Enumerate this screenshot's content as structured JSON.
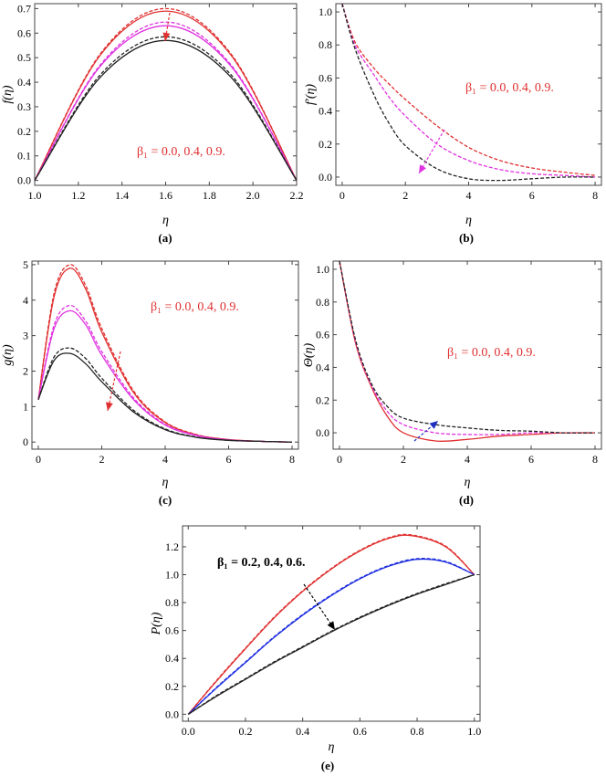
{
  "chart_data": [
    {
      "type": "line",
      "panel": "(a)",
      "xlabel": "η",
      "ylabel": "f(η)",
      "xlim": [
        1.0,
        2.2
      ],
      "ylim": [
        -0.02,
        0.72
      ],
      "xticks": [
        1.0,
        1.2,
        1.4,
        1.6,
        1.8,
        2.0,
        2.2
      ],
      "yticks": [
        0.0,
        0.1,
        0.2,
        0.3,
        0.4,
        0.5,
        0.6,
        0.7
      ],
      "xtick_labels": [
        "1.0",
        "1.2",
        "1.4",
        "1.6",
        "1.8",
        "2.0",
        "2.2"
      ],
      "ytick_labels": [
        "0.0",
        "0.1",
        "0.2",
        "0.3",
        "0.4",
        "0.5",
        "0.6",
        "0.7"
      ],
      "annotation": "β₁ = 0.0, 0.4, 0.9.",
      "series": [
        {
          "color": "#e03030",
          "dash": false,
          "x": [
            1.0,
            1.3,
            1.6,
            1.9,
            2.2
          ],
          "y": [
            0.0,
            0.51,
            0.69,
            0.51,
            0.0
          ]
        },
        {
          "color": "#e03030",
          "dash": true,
          "x": [
            1.0,
            1.3,
            1.6,
            1.9,
            2.2
          ],
          "y": [
            0.0,
            0.515,
            0.7,
            0.515,
            0.0
          ]
        },
        {
          "color": "#e030e0",
          "dash": false,
          "x": [
            1.0,
            1.3,
            1.6,
            1.9,
            2.2
          ],
          "y": [
            0.0,
            0.465,
            0.63,
            0.465,
            0.0
          ]
        },
        {
          "color": "#e030e0",
          "dash": true,
          "x": [
            1.0,
            1.3,
            1.6,
            1.9,
            2.2
          ],
          "y": [
            0.0,
            0.47,
            0.645,
            0.47,
            0.0
          ]
        },
        {
          "color": "#222222",
          "dash": false,
          "x": [
            1.0,
            1.3,
            1.6,
            1.9,
            2.2
          ],
          "y": [
            0.0,
            0.42,
            0.57,
            0.42,
            0.0
          ]
        },
        {
          "color": "#222222",
          "dash": true,
          "x": [
            1.0,
            1.3,
            1.6,
            1.9,
            2.2
          ],
          "y": [
            0.0,
            0.43,
            0.585,
            0.43,
            0.0
          ]
        }
      ]
    },
    {
      "type": "line",
      "panel": "(b)",
      "xlabel": "η",
      "ylabel": "f′(η)",
      "xlim": [
        -0.2,
        8.2
      ],
      "ylim": [
        -0.05,
        1.05
      ],
      "xticks": [
        0,
        2,
        4,
        6,
        8
      ],
      "yticks": [
        0.0,
        0.2,
        0.4,
        0.6,
        0.8,
        1.0
      ],
      "xtick_labels": [
        "0",
        "2",
        "4",
        "6",
        "8"
      ],
      "ytick_labels": [
        "0.0",
        "0.2",
        "0.4",
        "0.6",
        "0.8",
        "1.0"
      ],
      "annotation": "β₁ = 0.0, 0.4, 0.9.",
      "series": [
        {
          "color": "#e03030",
          "dash": true,
          "x": [
            0,
            0.4,
            1,
            1.5,
            2,
            3,
            4,
            5,
            6,
            7,
            8
          ],
          "y": [
            1.05,
            0.82,
            0.66,
            0.56,
            0.47,
            0.31,
            0.18,
            0.1,
            0.055,
            0.03,
            0.01
          ]
        },
        {
          "color": "#e030e0",
          "dash": true,
          "x": [
            0,
            0.4,
            1,
            1.5,
            2,
            3,
            4,
            5,
            6,
            7,
            8
          ],
          "y": [
            1.05,
            0.8,
            0.62,
            0.48,
            0.37,
            0.2,
            0.1,
            0.045,
            0.02,
            0.01,
            0.0
          ]
        },
        {
          "color": "#222222",
          "dash": true,
          "x": [
            0,
            0.4,
            1,
            1.5,
            2,
            3,
            4,
            5,
            6,
            7,
            8
          ],
          "y": [
            1.05,
            0.78,
            0.5,
            0.32,
            0.19,
            0.05,
            -0.01,
            -0.02,
            -0.01,
            0.0,
            0.0
          ]
        }
      ]
    },
    {
      "type": "line",
      "panel": "(c)",
      "xlabel": "η",
      "ylabel": "g(η)",
      "xlim": [
        -0.2,
        8.2
      ],
      "ylim": [
        -0.2,
        5.1
      ],
      "xticks": [
        0,
        2,
        4,
        6,
        8
      ],
      "yticks": [
        0,
        1,
        2,
        3,
        4,
        5
      ],
      "xtick_labels": [
        "0",
        "2",
        "4",
        "6",
        "8"
      ],
      "ytick_labels": [
        "0",
        "1",
        "2",
        "3",
        "4",
        "5"
      ],
      "annotation": "β₁ = 0.0, 0.4, 0.9.",
      "series": [
        {
          "color": "#e03030",
          "dash": false,
          "x": [
            0,
            0.5,
            1,
            1.5,
            2,
            3,
            4,
            5,
            6,
            7,
            8
          ],
          "y": [
            1.2,
            4.1,
            4.9,
            4.3,
            3.1,
            1.4,
            0.55,
            0.2,
            0.07,
            0.02,
            0.0
          ]
        },
        {
          "color": "#e03030",
          "dash": true,
          "x": [
            0,
            0.5,
            1,
            1.5,
            2,
            3,
            4,
            5,
            6,
            7,
            8
          ],
          "y": [
            1.2,
            4.2,
            5.0,
            4.4,
            3.2,
            1.45,
            0.57,
            0.21,
            0.07,
            0.02,
            0.0
          ]
        },
        {
          "color": "#e030e0",
          "dash": false,
          "x": [
            0,
            0.5,
            1,
            1.5,
            2,
            3,
            4,
            5,
            6,
            7,
            8
          ],
          "y": [
            1.2,
            3.2,
            3.7,
            3.3,
            2.45,
            1.2,
            0.48,
            0.18,
            0.06,
            0.02,
            0.0
          ]
        },
        {
          "color": "#e030e0",
          "dash": true,
          "x": [
            0,
            0.5,
            1,
            1.5,
            2,
            3,
            4,
            5,
            6,
            7,
            8
          ],
          "y": [
            1.2,
            3.3,
            3.85,
            3.4,
            2.55,
            1.25,
            0.5,
            0.19,
            0.06,
            0.02,
            0.0
          ]
        },
        {
          "color": "#222222",
          "dash": false,
          "x": [
            0,
            0.5,
            1,
            1.5,
            2,
            3,
            4,
            5,
            6,
            7,
            8
          ],
          "y": [
            1.2,
            2.3,
            2.5,
            2.2,
            1.7,
            0.85,
            0.35,
            0.13,
            0.05,
            0.02,
            0.0
          ]
        },
        {
          "color": "#222222",
          "dash": true,
          "x": [
            0,
            0.5,
            1,
            1.5,
            2,
            3,
            4,
            5,
            6,
            7,
            8
          ],
          "y": [
            1.2,
            2.4,
            2.65,
            2.35,
            1.8,
            0.9,
            0.37,
            0.14,
            0.05,
            0.02,
            0.0
          ]
        }
      ]
    },
    {
      "type": "line",
      "panel": "(d)",
      "xlabel": "η",
      "ylabel": "Θ(η)",
      "xlim": [
        -0.2,
        8.2
      ],
      "ylim": [
        -0.1,
        1.05
      ],
      "xticks": [
        0,
        2,
        4,
        6,
        8
      ],
      "yticks": [
        0.0,
        0.2,
        0.4,
        0.6,
        0.8,
        1.0
      ],
      "xtick_labels": [
        "0",
        "2",
        "4",
        "6",
        "8"
      ],
      "ytick_labels": [
        "0.0",
        "0.2",
        "0.4",
        "0.6",
        "0.8",
        "1.0"
      ],
      "annotation": "β₁ = 0.0, 0.4, 0.9.",
      "series": [
        {
          "color": "#e03030",
          "dash": false,
          "x": [
            0,
            0.5,
            1,
            1.5,
            2,
            3,
            4,
            5,
            6,
            7,
            8
          ],
          "y": [
            1.05,
            0.55,
            0.28,
            0.1,
            0.0,
            -0.05,
            -0.04,
            -0.02,
            -0.01,
            0.0,
            0.0
          ]
        },
        {
          "color": "#e030e0",
          "dash": true,
          "x": [
            0,
            0.5,
            1,
            1.5,
            2,
            3,
            4,
            5,
            6,
            7,
            8
          ],
          "y": [
            1.05,
            0.56,
            0.29,
            0.13,
            0.05,
            0.0,
            -0.01,
            -0.01,
            0.0,
            0.0,
            0.0
          ]
        },
        {
          "color": "#222222",
          "dash": true,
          "x": [
            0,
            0.5,
            1,
            1.5,
            2,
            3,
            4,
            5,
            6,
            7,
            8
          ],
          "y": [
            1.05,
            0.57,
            0.3,
            0.16,
            0.09,
            0.05,
            0.03,
            0.015,
            0.01,
            0.0,
            0.0
          ]
        }
      ]
    },
    {
      "type": "line",
      "panel": "(e)",
      "xlabel": "η",
      "ylabel": "P(η)",
      "xlim": [
        -0.02,
        1.02
      ],
      "ylim": [
        -0.05,
        1.35
      ],
      "xticks": [
        0.0,
        0.2,
        0.4,
        0.6,
        0.8,
        1.0
      ],
      "yticks": [
        0.0,
        0.2,
        0.4,
        0.6,
        0.8,
        1.0,
        1.2
      ],
      "xtick_labels": [
        "0.0",
        "0.2",
        "0.4",
        "0.6",
        "0.8",
        "1.0"
      ],
      "ytick_labels": [
        "0.0",
        "0.2",
        "0.4",
        "0.6",
        "0.8",
        "1.0",
        "1.2"
      ],
      "annotation": "β₁ = 0.2, 0.4, 0.6.",
      "series": [
        {
          "color": "#e03030",
          "dash": false,
          "x": [
            0,
            0.1,
            0.2,
            0.3,
            0.4,
            0.5,
            0.6,
            0.7,
            0.78,
            0.9,
            1.0
          ],
          "y": [
            0,
            0.24,
            0.47,
            0.69,
            0.88,
            1.04,
            1.17,
            1.26,
            1.28,
            1.2,
            1.0
          ]
        },
        {
          "color": "#e03030",
          "dash": true,
          "x": [
            0,
            0.1,
            0.2,
            0.3,
            0.4,
            0.5,
            0.6,
            0.7,
            0.78,
            0.9,
            1.0
          ],
          "y": [
            0,
            0.245,
            0.475,
            0.695,
            0.885,
            1.045,
            1.175,
            1.265,
            1.285,
            1.205,
            1.0
          ]
        },
        {
          "color": "#2030e0",
          "dash": false,
          "x": [
            0,
            0.1,
            0.2,
            0.3,
            0.4,
            0.5,
            0.6,
            0.7,
            0.8,
            0.9,
            1.0
          ],
          "y": [
            0,
            0.19,
            0.37,
            0.55,
            0.71,
            0.85,
            0.97,
            1.06,
            1.11,
            1.09,
            1.0
          ]
        },
        {
          "color": "#2030e0",
          "dash": true,
          "x": [
            0,
            0.1,
            0.2,
            0.3,
            0.4,
            0.5,
            0.6,
            0.7,
            0.8,
            0.9,
            1.0
          ],
          "y": [
            0,
            0.195,
            0.375,
            0.555,
            0.715,
            0.855,
            0.975,
            1.065,
            1.115,
            1.095,
            1.0
          ]
        },
        {
          "color": "#222222",
          "dash": false,
          "x": [
            0,
            0.1,
            0.2,
            0.3,
            0.4,
            0.5,
            0.6,
            0.7,
            0.8,
            0.9,
            1.0
          ],
          "y": [
            0,
            0.13,
            0.25,
            0.37,
            0.48,
            0.59,
            0.69,
            0.78,
            0.86,
            0.93,
            1.0
          ]
        },
        {
          "color": "#222222",
          "dash": true,
          "x": [
            0,
            0.1,
            0.2,
            0.3,
            0.4,
            0.5,
            0.6,
            0.7,
            0.8,
            0.9,
            1.0
          ],
          "y": [
            0,
            0.135,
            0.255,
            0.375,
            0.485,
            0.595,
            0.695,
            0.785,
            0.865,
            0.935,
            1.0
          ]
        }
      ]
    }
  ]
}
